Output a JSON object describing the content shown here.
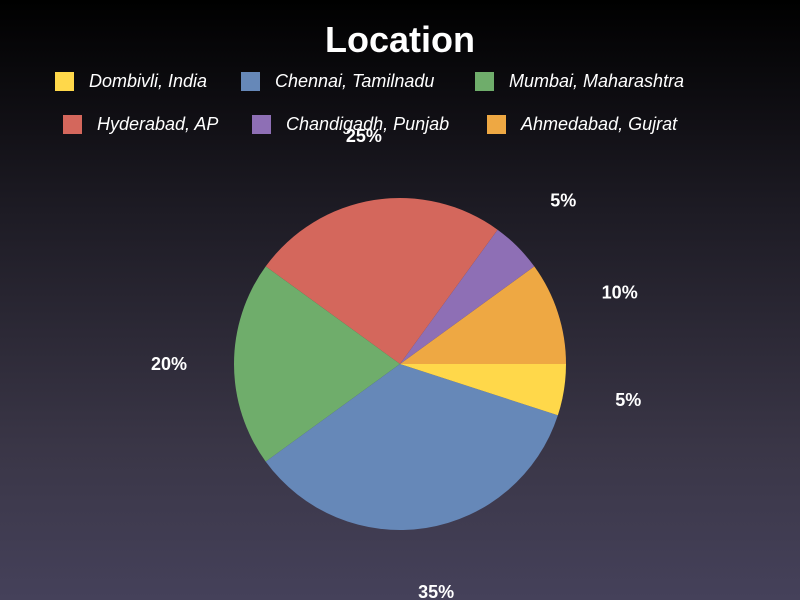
{
  "chart_data": {
    "type": "pie",
    "title": "Location",
    "categories": [
      "Dombivli, India",
      "Chennai, Tamilnadu",
      "Mumbai, Maharashtra",
      "Hyderabad, AP",
      "Chandigadh, Punjab",
      "Ahmedabad, Gujrat"
    ],
    "values": [
      5,
      35,
      20,
      25,
      5,
      10
    ],
    "value_labels": [
      "5%",
      "35%",
      "20%",
      "25%",
      "5%",
      "10%"
    ],
    "colors": [
      "#ffd84a",
      "#6688b8",
      "#6fad6b",
      "#d4675c",
      "#8e6fb5",
      "#eea843"
    ],
    "start_angle_deg": 90,
    "direction": "clockwise",
    "legend_position": "top"
  }
}
